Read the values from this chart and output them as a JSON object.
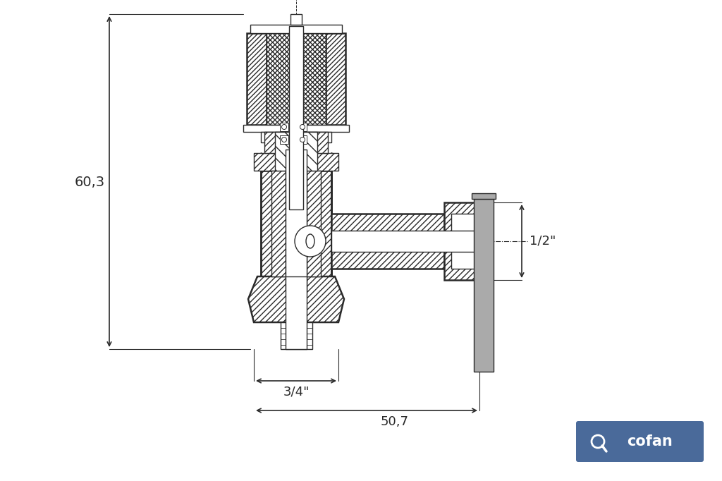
{
  "bg_color": "#ffffff",
  "line_color": "#2a2a2a",
  "handle_fill": "#aaaaaa",
  "cofan_bg": "#4a6a9a",
  "cofan_text": "#ffffff",
  "dim_60_3": "60,3",
  "dim_3_4": "3/4\"",
  "dim_50_7": "50,7",
  "dim_1_2": "1/2\"",
  "lw": 1.0,
  "lw_thick": 1.8
}
